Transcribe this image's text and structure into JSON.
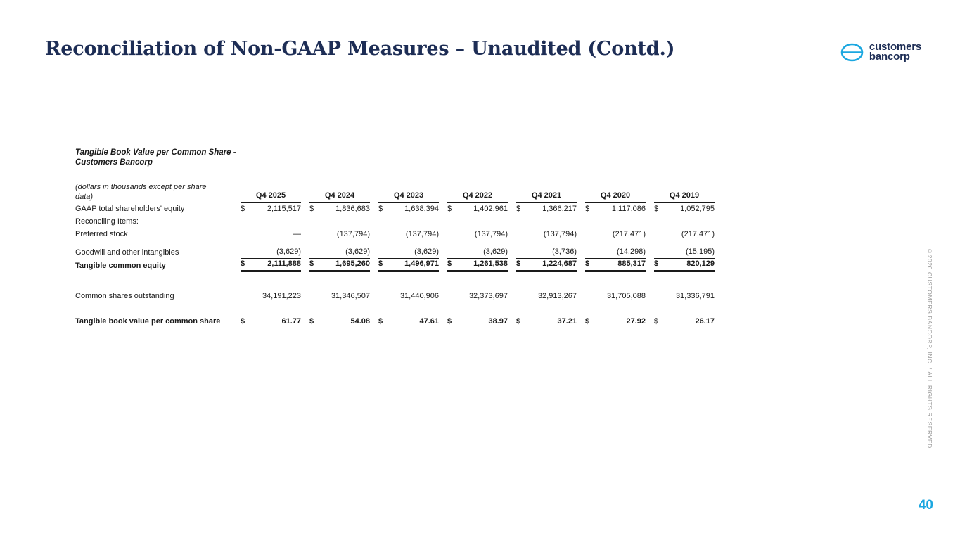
{
  "slide": {
    "title": "Reconciliation of Non-GAAP Measures – Unaudited (Contd.)",
    "page_number": "40",
    "copyright": "©2026 CUSTOMERS BANCORP, INC. / ALL RIGHTS RESERVED",
    "logo": {
      "line1": "customers",
      "line2": "bancorp"
    },
    "accent_color": "#1ba7e0",
    "navy_color": "#1d2d55"
  },
  "table": {
    "heading_line1": "Tangible Book Value per Common Share -",
    "heading_line2": "Customers Bancorp",
    "subheading": "(dollars in thousands except per share data)",
    "currency_symbol": "$",
    "columns": [
      "Q4 2025",
      "Q4 2024",
      "Q4 2023",
      "Q4 2022",
      "Q4 2021",
      "Q4 2020",
      "Q4 2019"
    ],
    "rows": [
      {
        "label": "GAAP total shareholders' equity",
        "dollar": true,
        "values": [
          "2,115,517",
          "1,836,683",
          "1,638,394",
          "1,402,961",
          "1,366,217",
          "1,117,086",
          "1,052,795"
        ]
      },
      {
        "label": "Reconciling Items:",
        "values": []
      },
      {
        "label": "Preferred stock",
        "values": [
          "—",
          "(137,794)",
          "(137,794)",
          "(137,794)",
          "(137,794)",
          "(217,471)",
          "(217,471)"
        ]
      },
      {
        "label": "Goodwill and other intangibles",
        "underline": true,
        "values": [
          "(3,629)",
          "(3,629)",
          "(3,629)",
          "(3,629)",
          "(3,736)",
          "(14,298)",
          "(15,195)"
        ]
      },
      {
        "label": "Tangible common equity",
        "bold": true,
        "dollar": true,
        "double_underline": true,
        "values": [
          "2,111,888",
          "1,695,260",
          "1,496,971",
          "1,261,538",
          "1,224,687",
          "885,317",
          "820,129"
        ]
      },
      {
        "label": "Common shares outstanding",
        "values": [
          "34,191,223",
          "31,346,507",
          "31,440,906",
          "32,373,697",
          "32,913,267",
          "31,705,088",
          "31,336,791"
        ]
      },
      {
        "label": "Tangible book value per common share",
        "bold": true,
        "dollar": true,
        "values": [
          "61.77",
          "54.08",
          "47.61",
          "38.97",
          "37.21",
          "27.92",
          "26.17"
        ]
      }
    ]
  }
}
